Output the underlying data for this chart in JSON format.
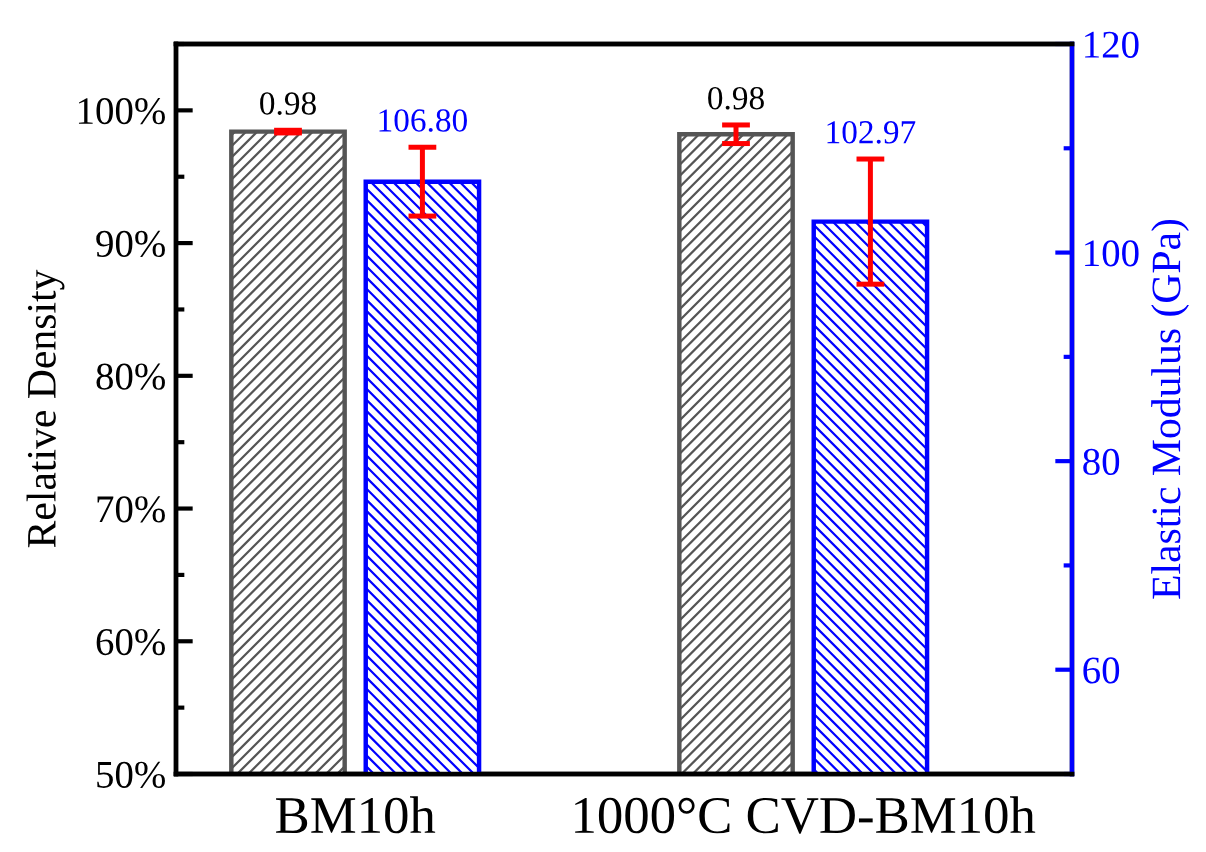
{
  "chart_data": {
    "type": "bar",
    "categories": [
      "BM10h",
      "1000°C CVD-BM10h"
    ],
    "ylabel": "Relative Density",
    "y2label": "Elastic Modulus (GPa)",
    "ylim": [
      0.5,
      1.05
    ],
    "yticks": [
      {
        "value": 0.5,
        "label": "50%"
      },
      {
        "value": 0.6,
        "label": "60%"
      },
      {
        "value": 0.7,
        "label": "70%"
      },
      {
        "value": 0.8,
        "label": "80%"
      },
      {
        "value": 0.9,
        "label": "90%"
      },
      {
        "value": 1.0,
        "label": "100%"
      }
    ],
    "y2lim": [
      50,
      120
    ],
    "y2ticks": [
      60,
      80,
      100,
      120
    ],
    "grid": false,
    "series": [
      {
        "color": "#555555",
        "values": [
          0.984,
          0.982
        ],
        "errors": [
          0.001,
          0.007
        ],
        "value_labels": [
          "0.98",
          "0.98"
        ]
      },
      {
        "color": "#0000ff",
        "axis": "y2",
        "values": [
          106.8,
          102.97
        ],
        "errors": [
          3.3,
          6.0
        ],
        "value_labels": [
          "106.80",
          "102.97"
        ]
      }
    ]
  }
}
